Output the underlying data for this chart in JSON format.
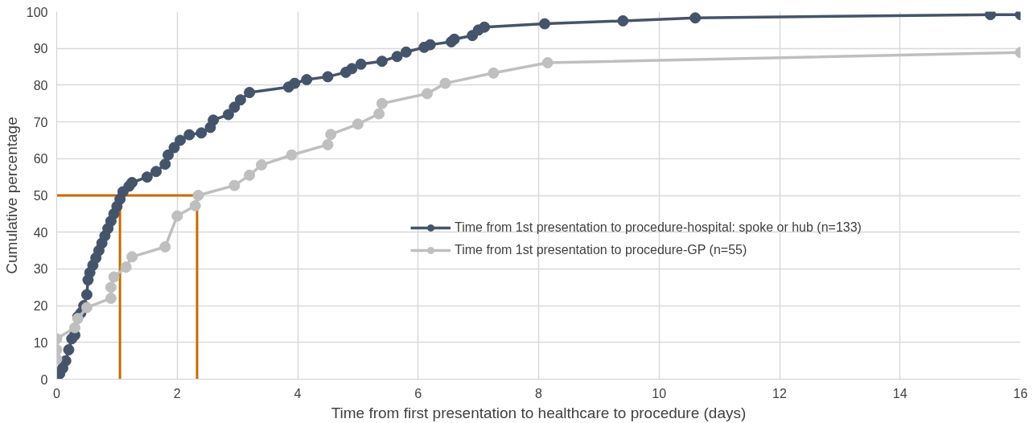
{
  "chart_data": {
    "type": "line",
    "xlabel": "Time from first presentation to healthcare to procedure (days)",
    "ylabel": "Cumulative percentage",
    "xlim": [
      0,
      16
    ],
    "xticks": [
      0,
      2,
      4,
      6,
      8,
      10,
      12,
      14,
      16
    ],
    "ylim": [
      0,
      100
    ],
    "yticks": [
      0,
      10,
      20,
      30,
      40,
      50,
      60,
      70,
      80,
      90,
      100
    ],
    "grid": true,
    "legend": "right",
    "marker": "circle",
    "line_style": "solid",
    "series": [
      {
        "name": "Time from 1st presentation to procedure-hospital: spoke or hub (n=133)",
        "color": "#44546a",
        "x": [
          0,
          0.05,
          0.1,
          0.15,
          0.2,
          0.25,
          0.3,
          0.35,
          0.4,
          0.45,
          0.5,
          0.52,
          0.55,
          0.6,
          0.65,
          0.7,
          0.75,
          0.8,
          0.85,
          0.9,
          0.95,
          1.0,
          1.05,
          1.1,
          1.2,
          1.25,
          1.5,
          1.65,
          1.8,
          1.85,
          1.95,
          2.05,
          2.2,
          2.4,
          2.55,
          2.6,
          2.85,
          2.95,
          3.05,
          3.2,
          3.85,
          3.95,
          4.15,
          4.5,
          4.8,
          4.9,
          5.05,
          5.4,
          5.65,
          5.8,
          6.1,
          6.2,
          6.55,
          6.6,
          6.9,
          7.0,
          7.1,
          8.1,
          9.4,
          10.6,
          15.5,
          16
        ],
        "values": [
          0.8,
          1.5,
          3,
          5,
          8,
          11,
          12,
          17,
          18,
          20,
          23,
          27,
          29,
          31,
          33,
          35,
          37,
          39,
          41,
          43,
          45,
          47,
          49,
          51,
          52.5,
          53.5,
          55,
          56.5,
          58.5,
          61,
          63,
          65,
          66.5,
          67,
          68.5,
          70.5,
          72,
          74,
          76,
          78,
          79.5,
          80.5,
          81.5,
          82.3,
          83.5,
          84.5,
          85.7,
          86.5,
          87.8,
          89,
          90.3,
          91,
          91.8,
          92.5,
          93.5,
          95,
          95.8,
          96.7,
          97.5,
          98.3,
          99.2,
          99.2
        ]
      },
      {
        "name": "Time from 1st presentation to procedure-GP (n=55)",
        "color": "#bfbfbf",
        "x": [
          0,
          0,
          0,
          0.3,
          0.35,
          0.5,
          0.9,
          0.9,
          0.95,
          1.15,
          1.25,
          1.8,
          2.0,
          2.3,
          2.35,
          2.95,
          3.2,
          3.4,
          3.9,
          4.5,
          4.55,
          5.0,
          5.35,
          5.4,
          6.15,
          6.45,
          7.25,
          8.15,
          16
        ],
        "values": [
          5.5,
          8,
          11,
          14,
          16.5,
          19.5,
          22,
          25,
          27.8,
          30.5,
          33.3,
          36,
          44.4,
          47.2,
          50,
          52.7,
          55.5,
          58.3,
          61,
          63.8,
          66.6,
          69.4,
          72.2,
          75,
          77.7,
          80.5,
          83.3,
          86.1,
          88.9
        ]
      }
    ],
    "ref_lines": [
      {
        "axis": "y",
        "value": 50,
        "color": "#c96a00"
      },
      {
        "axis": "x",
        "value": 1.05,
        "color": "#c96a00"
      },
      {
        "axis": "x",
        "value": 2.33,
        "color": "#c96a00"
      }
    ]
  }
}
